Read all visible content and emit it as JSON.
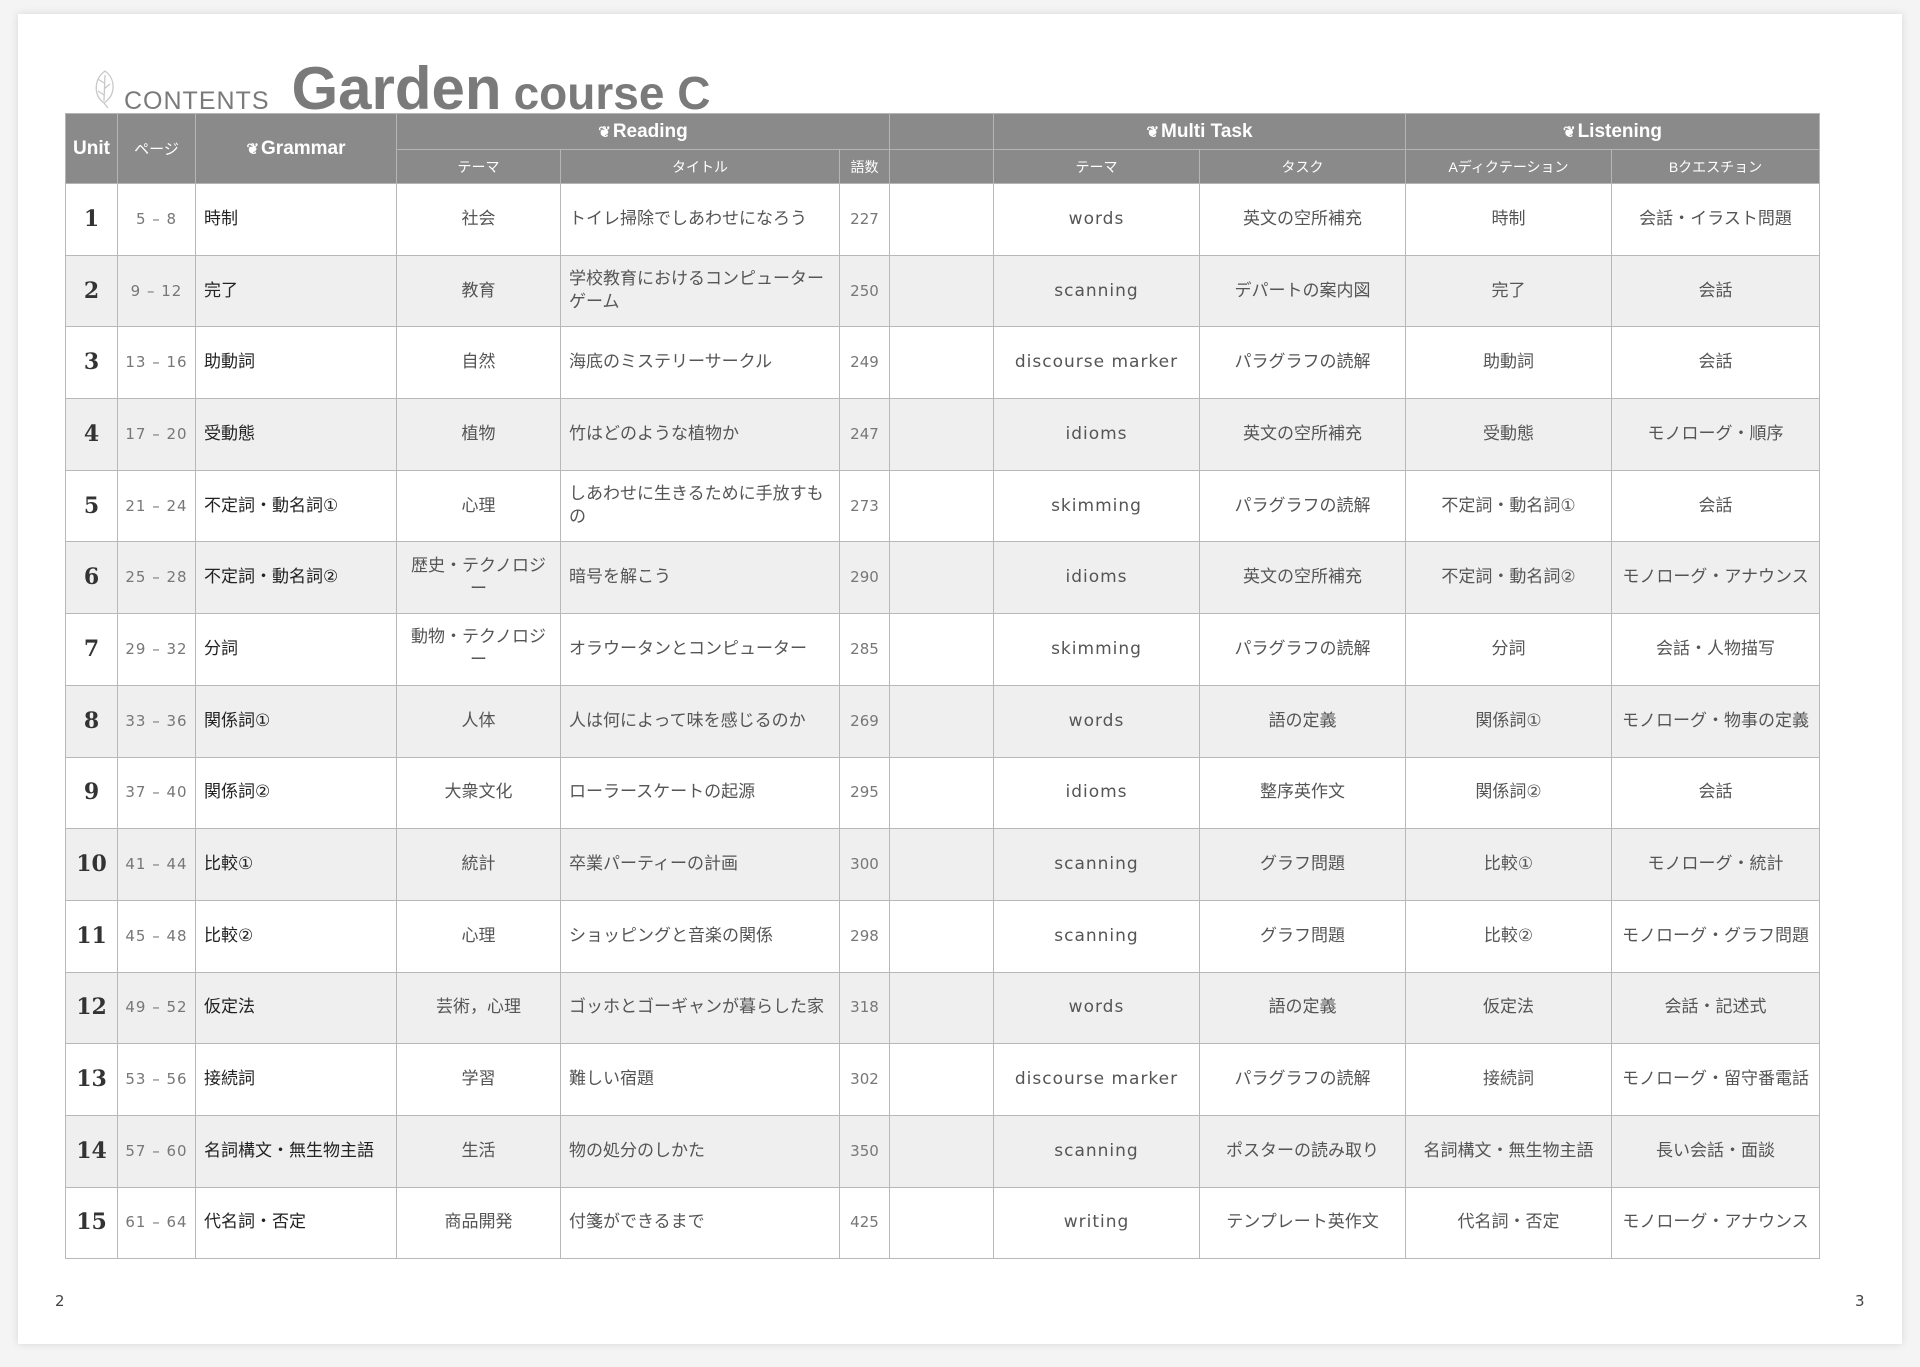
{
  "header": {
    "contents_label": "CONTENTS",
    "title_main": "Garden",
    "title_sub": "course C"
  },
  "columns": {
    "unit": "Unit",
    "page": "ページ",
    "grammar": "Grammar",
    "reading": "Reading",
    "multitask": "Multi Task",
    "listening": "Listening",
    "reading_theme": "テーマ",
    "reading_title": "タイトル",
    "reading_words": "語数",
    "mt_theme": "テーマ",
    "mt_task": "タスク",
    "listen_a": "Aディクテーション",
    "listen_b": "Bクエスチョン"
  },
  "rows": [
    {
      "unit": "1",
      "pages": "5 – 8",
      "grammar": "時制",
      "theme": "社会",
      "title": "トイレ掃除でしあわせになろう",
      "words": "227",
      "mt_theme": "words",
      "mt_task": "英文の空所補充",
      "listen_a": "時制",
      "listen_b": "会話・イラスト問題"
    },
    {
      "unit": "2",
      "pages": "9 – 12",
      "grammar": "完了",
      "theme": "教育",
      "title": "学校教育におけるコンピューターゲーム",
      "words": "250",
      "mt_theme": "scanning",
      "mt_task": "デパートの案内図",
      "listen_a": "完了",
      "listen_b": "会話"
    },
    {
      "unit": "3",
      "pages": "13 – 16",
      "grammar": "助動詞",
      "theme": "自然",
      "title": "海底のミステリーサークル",
      "words": "249",
      "mt_theme": "discourse marker",
      "mt_task": "パラグラフの読解",
      "listen_a": "助動詞",
      "listen_b": "会話"
    },
    {
      "unit": "4",
      "pages": "17 – 20",
      "grammar": "受動態",
      "theme": "植物",
      "title": "竹はどのような植物か",
      "words": "247",
      "mt_theme": "idioms",
      "mt_task": "英文の空所補充",
      "listen_a": "受動態",
      "listen_b": "モノローグ・順序"
    },
    {
      "unit": "5",
      "pages": "21 – 24",
      "grammar": "不定詞・動名詞①",
      "theme": "心理",
      "title": "しあわせに生きるために手放すもの",
      "words": "273",
      "mt_theme": "skimming",
      "mt_task": "パラグラフの読解",
      "listen_a": "不定詞・動名詞①",
      "listen_b": "会話"
    },
    {
      "unit": "6",
      "pages": "25 – 28",
      "grammar": "不定詞・動名詞②",
      "theme": "歴史・テクノロジー",
      "title": "暗号を解こう",
      "words": "290",
      "mt_theme": "idioms",
      "mt_task": "英文の空所補充",
      "listen_a": "不定詞・動名詞②",
      "listen_b": "モノローグ・アナウンス"
    },
    {
      "unit": "7",
      "pages": "29 – 32",
      "grammar": "分詞",
      "theme": "動物・テクノロジー",
      "title": "オラウータンとコンピューター",
      "words": "285",
      "mt_theme": "skimming",
      "mt_task": "パラグラフの読解",
      "listen_a": "分詞",
      "listen_b": "会話・人物描写"
    },
    {
      "unit": "8",
      "pages": "33 – 36",
      "grammar": "関係詞①",
      "theme": "人体",
      "title": "人は何によって味を感じるのか",
      "words": "269",
      "mt_theme": "words",
      "mt_task": "語の定義",
      "listen_a": "関係詞①",
      "listen_b": "モノローグ・物事の定義"
    },
    {
      "unit": "9",
      "pages": "37 – 40",
      "grammar": "関係詞②",
      "theme": "大衆文化",
      "title": "ローラースケートの起源",
      "words": "295",
      "mt_theme": "idioms",
      "mt_task": "整序英作文",
      "listen_a": "関係詞②",
      "listen_b": "会話"
    },
    {
      "unit": "10",
      "pages": "41 – 44",
      "grammar": "比較①",
      "theme": "統計",
      "title": "卒業パーティーの計画",
      "words": "300",
      "mt_theme": "scanning",
      "mt_task": "グラフ問題",
      "listen_a": "比較①",
      "listen_b": "モノローグ・統計"
    },
    {
      "unit": "11",
      "pages": "45 – 48",
      "grammar": "比較②",
      "theme": "心理",
      "title": "ショッピングと音楽の関係",
      "words": "298",
      "mt_theme": "scanning",
      "mt_task": "グラフ問題",
      "listen_a": "比較②",
      "listen_b": "モノローグ・グラフ問題"
    },
    {
      "unit": "12",
      "pages": "49 – 52",
      "grammar": "仮定法",
      "theme": "芸術，心理",
      "title": "ゴッホとゴーギャンが暮らした家",
      "words": "318",
      "mt_theme": "words",
      "mt_task": "語の定義",
      "listen_a": "仮定法",
      "listen_b": "会話・記述式"
    },
    {
      "unit": "13",
      "pages": "53 – 56",
      "grammar": "接続詞",
      "theme": "学習",
      "title": "難しい宿題",
      "words": "302",
      "mt_theme": "discourse marker",
      "mt_task": "パラグラフの読解",
      "listen_a": "接続詞",
      "listen_b": "モノローグ・留守番電話"
    },
    {
      "unit": "14",
      "pages": "57 – 60",
      "grammar": "名詞構文・無生物主語",
      "theme": "生活",
      "title": "物の処分のしかた",
      "words": "350",
      "mt_theme": "scanning",
      "mt_task": "ポスターの読み取り",
      "listen_a": "名詞構文・無生物主語",
      "listen_b": "長い会話・面談"
    },
    {
      "unit": "15",
      "pages": "61 – 64",
      "grammar": "代名詞・否定",
      "theme": "商品開発",
      "title": "付箋ができるまで",
      "words": "425",
      "mt_theme": "writing",
      "mt_task": "テンプレート英作文",
      "listen_a": "代名詞・否定",
      "listen_b": "モノローグ・アナウンス"
    }
  ],
  "footer": {
    "page_left": "2",
    "page_right": "3"
  },
  "icons": {
    "section": "leaf-icon"
  },
  "colors": {
    "header_bg": "#8a8a8a",
    "even_row": "#efefef",
    "title": "#7a7a7a"
  }
}
